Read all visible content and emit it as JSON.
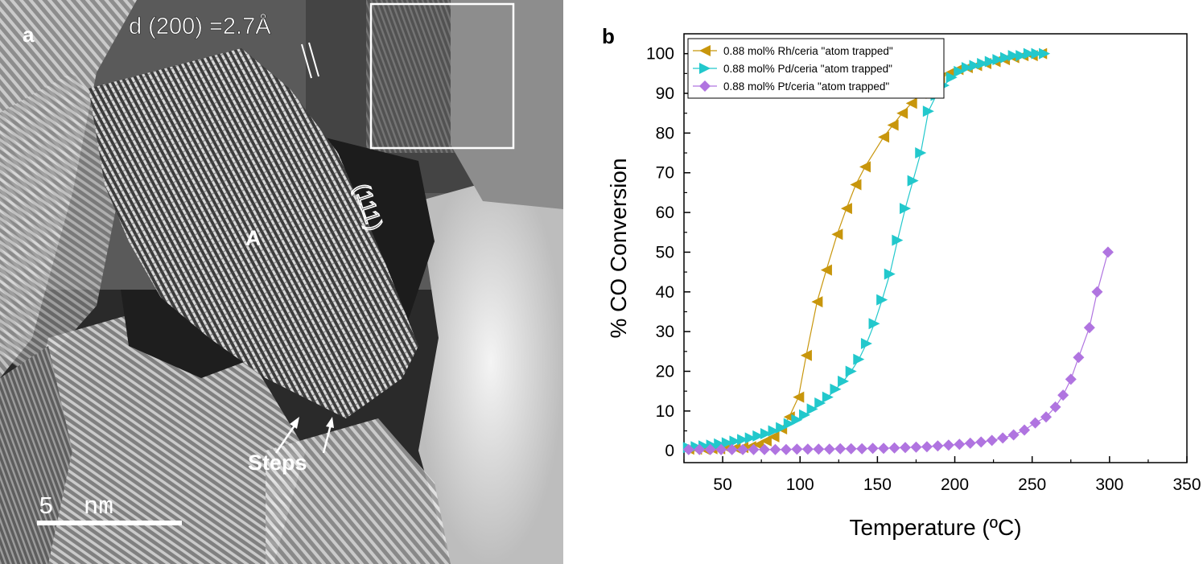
{
  "panel_a": {
    "letter": "a",
    "d_spacing_label": "d (200) =2.7Å",
    "plane_label": "(111)",
    "particle_label": "A",
    "steps_label": "Steps",
    "scale_bar_label": "5  nm"
  },
  "panel_b": {
    "letter": "b"
  },
  "colors": {
    "rh": "#C8960C",
    "pd": "#22C8CC",
    "pt": "#B074E0"
  },
  "chart_data": {
    "type": "line",
    "xlabel": "Temperature (ºC)",
    "ylabel": "% CO Conversion",
    "xlim": [
      25,
      350
    ],
    "ylim": [
      -3,
      105
    ],
    "xticks": [
      50,
      100,
      150,
      200,
      250,
      300,
      350
    ],
    "yticks": [
      0,
      10,
      20,
      30,
      40,
      50,
      60,
      70,
      80,
      90,
      100
    ],
    "legend_position": "top-left",
    "series": [
      {
        "name": "0.88 mol% Rh/ceria \"atom trapped\"",
        "marker": "triangle-left",
        "x": [
          28,
          33,
          38,
          43,
          48,
          53,
          58,
          63,
          68,
          73,
          78,
          83,
          88,
          93,
          99,
          104,
          111,
          117,
          124,
          130,
          136,
          142,
          154,
          160,
          166,
          172,
          178,
          184,
          190,
          196,
          202,
          208,
          214,
          220,
          226,
          232,
          238,
          244,
          250,
          256
        ],
        "y": [
          0.4,
          0.4,
          0.4,
          0.5,
          0.5,
          0.6,
          0.7,
          0.8,
          1.0,
          1.5,
          2.5,
          3.5,
          5.5,
          8.5,
          13.5,
          24,
          37.5,
          45.5,
          54.5,
          61,
          67,
          71.5,
          79,
          82,
          85,
          87.5,
          90,
          92,
          93.5,
          95,
          96,
          96.5,
          97,
          97.5,
          98,
          98.5,
          99,
          99.5,
          99.5,
          100
        ]
      },
      {
        "name": "0.88 mol% Pd/ceria \"atom trapped\"",
        "marker": "triangle-right",
        "x": [
          28,
          33,
          38,
          43,
          48,
          53,
          58,
          63,
          68,
          73,
          78,
          83,
          88,
          93,
          98,
          103,
          108,
          113,
          118,
          123,
          128,
          133,
          138,
          143,
          148,
          153,
          158,
          163,
          168,
          173,
          178,
          183,
          188,
          193,
          198,
          203,
          208,
          213,
          218,
          223,
          228,
          233,
          238,
          243,
          248,
          253,
          258
        ],
        "y": [
          0.8,
          1.0,
          1.2,
          1.4,
          1.7,
          2.0,
          2.4,
          2.8,
          3.2,
          3.7,
          4.3,
          5.0,
          5.8,
          6.8,
          7.8,
          9.0,
          10.5,
          12.0,
          13.5,
          15.5,
          17.5,
          20,
          23,
          27,
          32,
          38,
          44.5,
          53,
          61,
          68,
          75,
          85.5,
          89.5,
          92,
          94,
          95.5,
          96.5,
          97,
          97.5,
          98,
          98.5,
          99,
          99.5,
          99.5,
          100,
          100,
          100
        ]
      },
      {
        "name": "0.88 mol% Pt/ceria \"atom trapped\"",
        "marker": "diamond",
        "x": [
          28,
          35,
          42,
          49,
          56,
          63,
          70,
          77,
          84,
          91,
          98,
          105,
          112,
          119,
          126,
          133,
          140,
          147,
          154,
          161,
          168,
          175,
          182,
          189,
          196,
          203,
          210,
          217,
          224,
          231,
          238,
          245,
          252,
          259,
          265,
          270,
          275,
          280,
          287,
          292,
          299
        ],
        "y": [
          0.3,
          0.3,
          0.3,
          0.3,
          0.3,
          0.3,
          0.3,
          0.3,
          0.3,
          0.3,
          0.4,
          0.4,
          0.4,
          0.4,
          0.5,
          0.5,
          0.5,
          0.6,
          0.6,
          0.7,
          0.8,
          0.9,
          1.0,
          1.2,
          1.4,
          1.6,
          1.9,
          2.2,
          2.6,
          3.2,
          4.0,
          5.2,
          7.0,
          8.5,
          11,
          14,
          18,
          23.5,
          31,
          40,
          50
        ]
      }
    ]
  }
}
